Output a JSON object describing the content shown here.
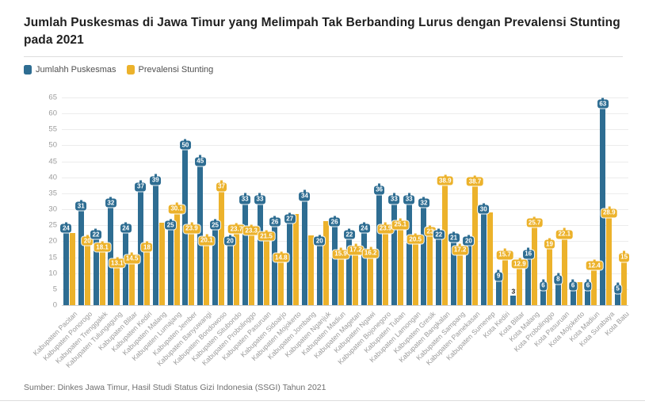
{
  "title": "Jumlah Puskesmas di Jawa Timur yang Melimpah Tak Berbanding Lurus dengan Prevalensi Stunting pada 2021",
  "legend": [
    {
      "label": "Jumlahh Puskesmas",
      "color": "#2E6D92"
    },
    {
      "label": "Prevalensi Stunting",
      "color": "#ECB22B"
    }
  ],
  "source": "Sumber: Dinkes Jawa Timur, Hasil Studi Status Gizi Indonesia (SSGI) Tahun 2021",
  "chart_data": {
    "type": "bar",
    "title": "Jumlah Puskesmas di Jawa Timur yang Melimpah Tak Berbanding Lurus dengan Prevalensi Stunting pada 2021",
    "xlabel": "",
    "ylabel": "",
    "ylim": [
      0,
      65
    ],
    "yticks": [
      0,
      5,
      10,
      15,
      20,
      25,
      30,
      35,
      40,
      45,
      50,
      55,
      60,
      65
    ],
    "grid": true,
    "legend_position": "top-left",
    "categories": [
      "Kabupaten Pacitan",
      "Kabupaten Ponorogo",
      "Kabupaten Trenggalek",
      "Kabupaten Tulungagung",
      "Kabupaten Blitar",
      "Kabupaten Kediri",
      "Kabupaten Malang",
      "Kabupaten Lumajang",
      "Kabupaten Jember",
      "Kabupaten Banyuwangi",
      "Kabupaten Bondowoso",
      "Kabupaten Situbondo",
      "Kabupaten Probolinggo",
      "Kabupaten Pasuruan",
      "Kabupaten Sidoarjo",
      "Kabupaten Mojokerto",
      "Kabupaten Jombang",
      "Kabupaten Nganjuk",
      "Kabupaten Madiun",
      "Kabupaten Magetan",
      "Kabupaten Ngawi",
      "Kabupaten Bojonegoro",
      "Kabupaten Tuban",
      "Kabupaten Lamongan",
      "Kabupaten Gresik",
      "Kabupaten Bangkalan",
      "Kabupaten Sampang",
      "Kabupaten Pamekasan",
      "Kabupaten Sumenep",
      "Kota Kediri",
      "Kota Blitar",
      "Kota Malang",
      "Kota Probolinggo",
      "Kota Pasuruan",
      "Kota Mojokerto",
      "Kota Madiun",
      "Kota Surabaya",
      "Kota Batu"
    ],
    "series": [
      {
        "name": "Jumlahh Puskesmas",
        "color": "#2E6D92",
        "values": [
          24,
          31,
          22,
          32,
          24,
          37,
          39,
          25,
          50,
          45,
          25,
          20,
          33,
          33,
          26,
          27,
          34,
          20,
          26,
          22,
          24,
          36,
          33,
          33,
          32,
          22,
          21,
          20,
          30,
          9,
          3,
          16,
          6,
          8,
          6,
          6,
          63,
          5
        ],
        "labels": [
          "24",
          "31",
          "22",
          "32",
          "24",
          "37",
          "39",
          "25",
          "50",
          "45",
          "25",
          "20",
          "33",
          "33",
          "26",
          "27",
          "34",
          "20",
          "26",
          "22",
          "24",
          "36",
          "33",
          "33",
          "32",
          "22",
          "21",
          "20",
          "30",
          "9",
          "3",
          "16",
          "6",
          "8",
          "6",
          "6",
          "63",
          "5"
        ],
        "plain_label_indexes": [
          30
        ]
      },
      {
        "name": "Prevalensi Stunting",
        "color": "#ECB22B",
        "values": [
          22.7,
          20,
          18.1,
          13.1,
          14.5,
          18,
          25.7,
          30.1,
          23.9,
          20.1,
          37,
          23.7,
          23.3,
          21.5,
          14.8,
          28.5,
          21.8,
          26.2,
          15.9,
          17.2,
          16.2,
          23.9,
          25.1,
          20.5,
          23,
          38.9,
          17.2,
          38.7,
          29,
          15.7,
          12.9,
          25.7,
          19,
          22.1,
          7.3,
          12.4,
          28.9,
          15
        ],
        "labels": [
          "",
          "20",
          "18.1",
          "13.1",
          "14.5",
          "18",
          "",
          "30.1",
          "23.9",
          "20.1",
          "37",
          "23.7",
          "23.3",
          "21.5",
          "14.8",
          "",
          "",
          "",
          "15.9",
          "17.2",
          "16.2",
          "23.9",
          "25.1",
          "20.5",
          "23",
          "38.9",
          "17.2",
          "38.7",
          "",
          "15.7",
          "12.9",
          "25.7",
          "19",
          "22.1",
          "",
          "12.4",
          "28.9",
          "15"
        ],
        "plain_label_indexes": []
      }
    ]
  }
}
